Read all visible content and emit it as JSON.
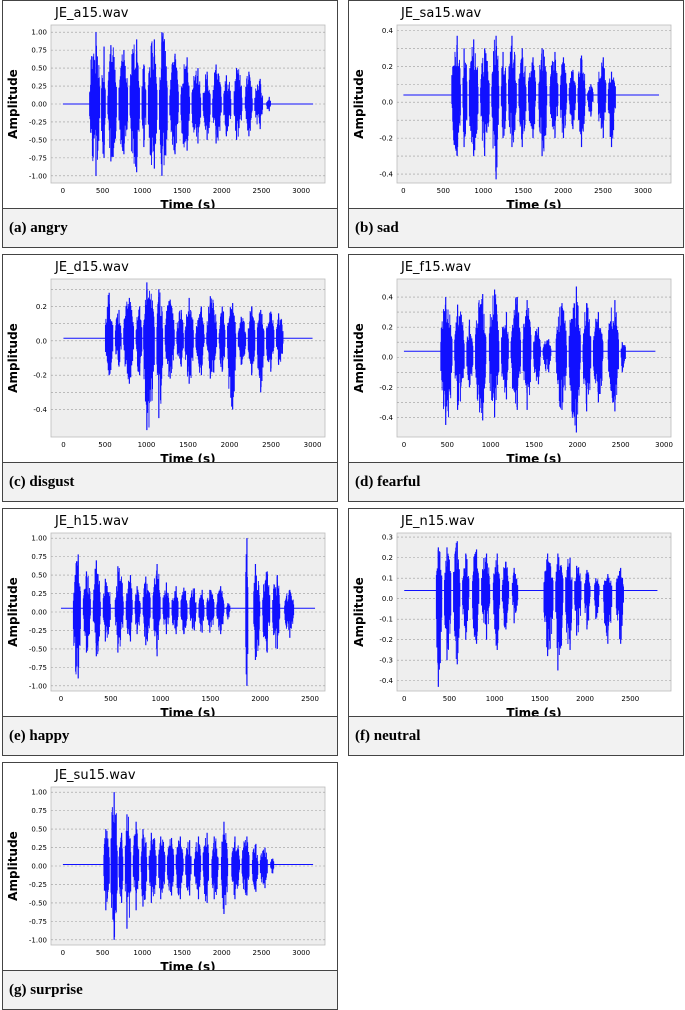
{
  "colors": {
    "waveform": "#1010ff",
    "plot_bg": "#eeeeee",
    "grid": "#9a9a9a",
    "caption_bg": "#f2f2f2"
  },
  "panels": [
    {
      "caption": "(a) angry",
      "chart_data": {
        "type": "line",
        "title": "JE_a15.wav",
        "xlabel": "Time (s)",
        "ylabel": "Amplitude",
        "xlim": [
          -150,
          3300
        ],
        "ylim": [
          -1.1,
          1.1
        ],
        "xticks": [
          0,
          500,
          1000,
          1500,
          2000,
          2500,
          3000
        ],
        "yticks": [
          -1.0,
          -0.75,
          -0.5,
          -0.25,
          0.0,
          0.25,
          0.5,
          0.75,
          1.0
        ],
        "ytick_labels": [
          "-1.00",
          "-0.75",
          "-0.50",
          "-0.25",
          "0.00",
          "0.25",
          "0.50",
          "0.75",
          "1.00"
        ],
        "grid": true,
        "baseline": 0.0,
        "signal_range": [
          0,
          3150
        ],
        "bursts": [
          [
            330,
            470,
            1.0,
            -1.0
          ],
          [
            480,
            540,
            0.8,
            -0.75
          ],
          [
            560,
            680,
            0.82,
            -0.8
          ],
          [
            700,
            820,
            0.75,
            -0.7
          ],
          [
            840,
            970,
            0.9,
            -0.95
          ],
          [
            990,
            1050,
            0.55,
            -0.6
          ],
          [
            1070,
            1190,
            0.9,
            -0.9
          ],
          [
            1210,
            1320,
            1.0,
            -1.0
          ],
          [
            1340,
            1460,
            0.7,
            -0.7
          ],
          [
            1480,
            1600,
            0.65,
            -0.65
          ],
          [
            1620,
            1740,
            0.5,
            -0.55
          ],
          [
            1760,
            1860,
            0.45,
            -0.5
          ],
          [
            1880,
            2000,
            0.55,
            -0.55
          ],
          [
            2020,
            2120,
            0.4,
            -0.45
          ],
          [
            2150,
            2260,
            0.5,
            -0.5
          ],
          [
            2290,
            2390,
            0.45,
            -0.45
          ],
          [
            2410,
            2520,
            0.35,
            -0.35
          ],
          [
            2560,
            2620,
            0.1,
            -0.1
          ]
        ]
      }
    },
    {
      "caption": "(b) sad",
      "chart_data": {
        "type": "line",
        "title": "JE_sa15.wav",
        "xlabel": "Time (s)",
        "ylabel": "Amplitude",
        "xlim": [
          -80,
          3350
        ],
        "ylim": [
          -0.45,
          0.43
        ],
        "xticks": [
          0,
          500,
          1000,
          1500,
          2000,
          2500,
          3000
        ],
        "yticks": [
          -0.4,
          -0.3,
          -0.2,
          -0.1,
          0.0,
          0.1,
          0.2,
          0.3,
          0.4
        ],
        "ytick_labels": [
          "-0.4",
          "",
          "-0.2",
          "",
          "0.0",
          "",
          "0.2",
          "",
          "0.4"
        ],
        "grid": true,
        "baseline": 0.04,
        "signal_range": [
          0,
          3200
        ],
        "bursts": [
          [
            600,
            720,
            0.37,
            -0.3
          ],
          [
            740,
            800,
            0.3,
            -0.25
          ],
          [
            820,
            940,
            0.35,
            -0.3
          ],
          [
            960,
            1080,
            0.3,
            -0.3
          ],
          [
            1100,
            1200,
            0.37,
            -0.43
          ],
          [
            1220,
            1290,
            0.28,
            -0.2
          ],
          [
            1310,
            1420,
            0.37,
            -0.25
          ],
          [
            1440,
            1540,
            0.3,
            -0.25
          ],
          [
            1560,
            1660,
            0.25,
            -0.2
          ],
          [
            1690,
            1800,
            0.3,
            -0.3
          ],
          [
            1830,
            1940,
            0.28,
            -0.2
          ],
          [
            1960,
            2050,
            0.25,
            -0.2
          ],
          [
            2070,
            2160,
            0.18,
            -0.15
          ],
          [
            2180,
            2280,
            0.26,
            -0.25
          ],
          [
            2300,
            2380,
            0.1,
            -0.08
          ],
          [
            2430,
            2540,
            0.25,
            -0.2
          ],
          [
            2560,
            2660,
            0.17,
            -0.25
          ]
        ]
      }
    },
    {
      "caption": "(c) disgust",
      "chart_data": {
        "type": "line",
        "title": "JE_d15.wav",
        "xlabel": "Time (s)",
        "ylabel": "Amplitude",
        "xlim": [
          -150,
          3150
        ],
        "ylim": [
          -0.56,
          0.36
        ],
        "xticks": [
          0,
          500,
          1000,
          1500,
          2000,
          2500,
          3000
        ],
        "yticks": [
          -0.4,
          -0.3,
          -0.2,
          -0.1,
          0.0,
          0.1,
          0.2,
          0.3
        ],
        "ytick_labels": [
          "-0.4",
          "",
          "-0.2",
          "",
          "0.0",
          "",
          "0.2",
          ""
        ],
        "grid": true,
        "baseline": 0.015,
        "signal_range": [
          0,
          3000
        ],
        "bursts": [
          [
            500,
            600,
            0.28,
            -0.2
          ],
          [
            620,
            700,
            0.18,
            -0.15
          ],
          [
            720,
            850,
            0.25,
            -0.25
          ],
          [
            870,
            950,
            0.2,
            -0.2
          ],
          [
            960,
            1100,
            0.34,
            -0.52
          ],
          [
            1120,
            1200,
            0.3,
            -0.45
          ],
          [
            1220,
            1340,
            0.24,
            -0.22
          ],
          [
            1360,
            1450,
            0.18,
            -0.15
          ],
          [
            1460,
            1570,
            0.25,
            -0.25
          ],
          [
            1590,
            1700,
            0.2,
            -0.2
          ],
          [
            1720,
            1850,
            0.26,
            -0.22
          ],
          [
            1870,
            1950,
            0.2,
            -0.18
          ],
          [
            1970,
            2080,
            0.22,
            -0.4
          ],
          [
            2100,
            2200,
            0.14,
            -0.14
          ],
          [
            2220,
            2310,
            0.2,
            -0.2
          ],
          [
            2330,
            2420,
            0.18,
            -0.3
          ],
          [
            2440,
            2540,
            0.17,
            -0.18
          ],
          [
            2560,
            2650,
            0.16,
            -0.14
          ]
        ]
      }
    },
    {
      "caption": "(d) fearful",
      "chart_data": {
        "type": "line",
        "title": "JE_f15.wav",
        "xlabel": "Time (s)",
        "ylabel": "Amplitude",
        "xlim": [
          -80,
          3080
        ],
        "ylim": [
          -0.53,
          0.52
        ],
        "xticks": [
          0,
          500,
          1000,
          1500,
          2000,
          2500,
          3000
        ],
        "yticks": [
          -0.4,
          -0.3,
          -0.2,
          -0.1,
          0.0,
          0.1,
          0.2,
          0.3,
          0.4
        ],
        "ytick_labels": [
          "-0.4",
          "",
          "-0.2",
          "",
          "0.0",
          "",
          "0.2",
          "",
          "0.4"
        ],
        "grid": true,
        "baseline": 0.04,
        "signal_range": [
          0,
          2900
        ],
        "bursts": [
          [
            420,
            560,
            0.4,
            -0.45
          ],
          [
            580,
            700,
            0.35,
            -0.35
          ],
          [
            720,
            800,
            0.25,
            -0.2
          ],
          [
            820,
            950,
            0.42,
            -0.42
          ],
          [
            980,
            1100,
            0.45,
            -0.4
          ],
          [
            1120,
            1210,
            0.3,
            -0.28
          ],
          [
            1230,
            1350,
            0.4,
            -0.35
          ],
          [
            1370,
            1470,
            0.38,
            -0.35
          ],
          [
            1490,
            1580,
            0.2,
            -0.18
          ],
          [
            1600,
            1700,
            0.12,
            -0.1
          ],
          [
            1750,
            1880,
            0.36,
            -0.35
          ],
          [
            1900,
            2040,
            0.47,
            -0.5
          ],
          [
            2060,
            2160,
            0.36,
            -0.36
          ],
          [
            2180,
            2300,
            0.3,
            -0.3
          ],
          [
            2350,
            2480,
            0.38,
            -0.36
          ],
          [
            2500,
            2560,
            0.1,
            -0.1
          ]
        ]
      }
    },
    {
      "caption": "(e) happy",
      "chart_data": {
        "type": "line",
        "title": "JE_h15.wav",
        "xlabel": "Time (s)",
        "ylabel": "Amplitude",
        "xlim": [
          -100,
          2650
        ],
        "ylim": [
          -1.07,
          1.07
        ],
        "xticks": [
          0,
          500,
          1000,
          1500,
          2000,
          2500
        ],
        "yticks": [
          -1.0,
          -0.75,
          -0.5,
          -0.25,
          0.0,
          0.25,
          0.5,
          0.75,
          1.0
        ],
        "ytick_labels": [
          "-1.00",
          "-0.75",
          "-0.50",
          "-0.25",
          "0.00",
          "0.25",
          "0.50",
          "0.75",
          "1.00"
        ],
        "grid": true,
        "baseline": 0.05,
        "signal_range": [
          0,
          2550
        ],
        "bursts": [
          [
            120,
            200,
            0.78,
            -0.9
          ],
          [
            220,
            300,
            0.55,
            -0.55
          ],
          [
            320,
            400,
            0.7,
            -0.6
          ],
          [
            420,
            500,
            0.45,
            -0.4
          ],
          [
            540,
            630,
            0.62,
            -0.55
          ],
          [
            650,
            720,
            0.5,
            -0.4
          ],
          [
            740,
            800,
            0.35,
            -0.3
          ],
          [
            820,
            900,
            0.48,
            -0.45
          ],
          [
            920,
            1000,
            0.65,
            -0.6
          ],
          [
            1020,
            1090,
            0.4,
            -0.3
          ],
          [
            1110,
            1180,
            0.35,
            -0.3
          ],
          [
            1200,
            1270,
            0.33,
            -0.3
          ],
          [
            1290,
            1360,
            0.32,
            -0.25
          ],
          [
            1380,
            1440,
            0.3,
            -0.28
          ],
          [
            1460,
            1540,
            0.3,
            -0.28
          ],
          [
            1560,
            1640,
            0.35,
            -0.3
          ],
          [
            1660,
            1700,
            0.12,
            -0.1
          ],
          [
            1850,
            1880,
            1.0,
            -1.0
          ],
          [
            1930,
            2000,
            0.65,
            -0.65
          ],
          [
            2020,
            2100,
            0.55,
            -0.55
          ],
          [
            2120,
            2200,
            0.5,
            -0.5
          ],
          [
            2240,
            2340,
            0.3,
            -0.35
          ]
        ]
      }
    },
    {
      "caption": "(f) neutral",
      "chart_data": {
        "type": "line",
        "title": "JE_n15.wav",
        "xlabel": "Time (s)",
        "ylabel": "Amplitude",
        "xlim": [
          -80,
          2950
        ],
        "ylim": [
          -0.45,
          0.32
        ],
        "xticks": [
          0,
          500,
          1000,
          1500,
          2000,
          2500
        ],
        "yticks": [
          -0.4,
          -0.3,
          -0.2,
          -0.1,
          0.0,
          0.1,
          0.2,
          0.3
        ],
        "ytick_labels": [
          "-0.4",
          "-0.3",
          "-0.2",
          "-0.1",
          "0.0",
          "0.1",
          "0.2",
          "0.3"
        ],
        "grid": true,
        "baseline": 0.04,
        "signal_range": [
          0,
          2800
        ],
        "bursts": [
          [
            350,
            420,
            0.25,
            -0.43
          ],
          [
            440,
            520,
            0.25,
            -0.3
          ],
          [
            540,
            620,
            0.28,
            -0.32
          ],
          [
            640,
            720,
            0.22,
            -0.2
          ],
          [
            750,
            830,
            0.24,
            -0.22
          ],
          [
            850,
            950,
            0.22,
            -0.2
          ],
          [
            980,
            1060,
            0.22,
            -0.25
          ],
          [
            1080,
            1160,
            0.18,
            -0.15
          ],
          [
            1190,
            1260,
            0.15,
            -0.12
          ],
          [
            1540,
            1650,
            0.22,
            -0.28
          ],
          [
            1670,
            1760,
            0.22,
            -0.35
          ],
          [
            1780,
            1860,
            0.2,
            -0.25
          ],
          [
            1880,
            1960,
            0.16,
            -0.18
          ],
          [
            1990,
            2060,
            0.14,
            -0.15
          ],
          [
            2100,
            2160,
            0.1,
            -0.1
          ],
          [
            2200,
            2300,
            0.12,
            -0.22
          ],
          [
            2340,
            2430,
            0.15,
            -0.22
          ]
        ]
      }
    },
    {
      "caption": "(g) surprise",
      "chart_data": {
        "type": "line",
        "title": "JE_su15.wav",
        "xlabel": "Time (s)",
        "ylabel": "Amplitude",
        "xlim": [
          -150,
          3300
        ],
        "ylim": [
          -1.07,
          1.07
        ],
        "xticks": [
          0,
          500,
          1000,
          1500,
          2000,
          2500,
          3000
        ],
        "yticks": [
          -1.0,
          -0.75,
          -0.5,
          -0.25,
          0.0,
          0.25,
          0.5,
          0.75,
          1.0
        ],
        "ytick_labels": [
          "-1.00",
          "-0.75",
          "-0.50",
          "-0.25",
          "0.00",
          "0.25",
          "0.50",
          "0.75",
          "1.00"
        ],
        "grid": true,
        "baseline": 0.02,
        "signal_range": [
          0,
          3150
        ],
        "bursts": [
          [
            510,
            590,
            0.5,
            -0.6
          ],
          [
            600,
            690,
            1.0,
            -1.0
          ],
          [
            700,
            760,
            0.45,
            -0.5
          ],
          [
            780,
            860,
            0.7,
            -0.85
          ],
          [
            880,
            960,
            0.6,
            -0.6
          ],
          [
            980,
            1060,
            0.5,
            -0.55
          ],
          [
            1080,
            1180,
            0.45,
            -0.5
          ],
          [
            1200,
            1290,
            0.4,
            -0.45
          ],
          [
            1310,
            1400,
            0.38,
            -0.4
          ],
          [
            1420,
            1520,
            0.4,
            -0.45
          ],
          [
            1540,
            1620,
            0.35,
            -0.4
          ],
          [
            1650,
            1740,
            0.4,
            -0.45
          ],
          [
            1760,
            1840,
            0.45,
            -0.5
          ],
          [
            1870,
            1960,
            0.4,
            -0.45
          ],
          [
            1990,
            2080,
            0.6,
            -0.65
          ],
          [
            2120,
            2230,
            0.4,
            -0.45
          ],
          [
            2250,
            2350,
            0.4,
            -0.4
          ],
          [
            2380,
            2460,
            0.3,
            -0.35
          ],
          [
            2480,
            2580,
            0.25,
            -0.3
          ],
          [
            2610,
            2660,
            0.1,
            -0.1
          ]
        ]
      }
    }
  ]
}
